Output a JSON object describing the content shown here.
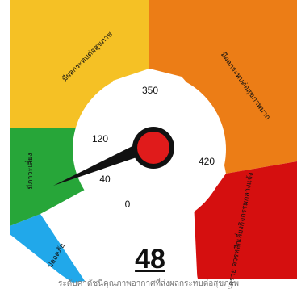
{
  "gauge": {
    "value": "48",
    "ticks": [
      "0",
      "40",
      "120",
      "350",
      "420"
    ],
    "segments": [
      {
        "label": "ปลอดภัย",
        "color": "#21a8ea"
      },
      {
        "label": "มีภาวะเสี่ยง",
        "color": "#27a639"
      },
      {
        "label": "มีผลกระทบต่อสุขภาพ",
        "color": "#f5c125"
      },
      {
        "label": "มีผลกระทบต่อสุขภาพมาก",
        "color": "#ec7d16"
      },
      {
        "label": "อันตราย ควรหลีกเลี่ยงกิจกรรมกลางแจ้ง",
        "color": "#d50f0f"
      }
    ],
    "needle_color": "#111111",
    "hub_color": "#e01b1b",
    "caption": "ระดับค่าดัชนีคุณภาพอากาศที่ส่งผลกระทบต่อสุขภาพ"
  }
}
